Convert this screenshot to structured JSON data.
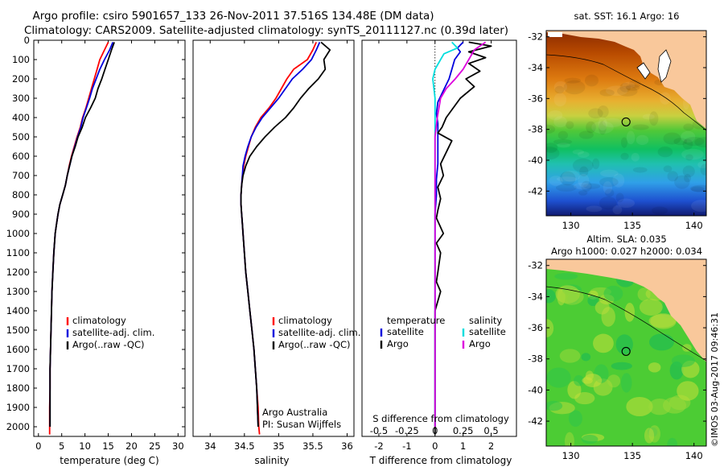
{
  "header": {
    "title_line1": "Argo profile: csiro 5901657_133 26-Nov-2011 37.516S 134.48E (DM data)",
    "title_line2": "Climatology: CARS2009. Satellite-adjusted climatology: synTS_20111127.nc (0.39d later)"
  },
  "colors": {
    "climatology": "#ff0000",
    "satellite": "#0000dd",
    "argo": "#000000",
    "sal_satellite": "#00dddd",
    "sal_argo": "#dd00dd",
    "land": "#f9c89b"
  },
  "chart_data": [
    {
      "id": "temperature",
      "type": "line",
      "xlabel": "temperature (deg C)",
      "ylabel": "",
      "xlim": [
        -1,
        31.5
      ],
      "ylim": [
        0,
        2050
      ],
      "y_reversed": true,
      "xticks": [
        0,
        5,
        10,
        15,
        20,
        25,
        30
      ],
      "yticks": [
        0,
        100,
        200,
        300,
        400,
        500,
        600,
        700,
        800,
        900,
        1000,
        1100,
        1200,
        1300,
        1400,
        1500,
        1600,
        1700,
        1800,
        1900,
        2000
      ],
      "legend": [
        "climatology",
        "satellite-adj. clim.",
        "Argo(..raw -QC)"
      ],
      "legend_position": "lower-left",
      "series": [
        {
          "name": "climatology",
          "color": "#ff0000",
          "x": [
            15.0,
            14.2,
            13.2,
            12.6,
            12.0,
            11.4,
            10.8,
            10.2,
            9.5,
            9.0,
            8.3,
            7.7,
            7.1,
            6.6,
            6.2,
            5.8,
            5.2,
            4.6,
            4.2,
            3.9,
            3.6,
            3.3,
            3.1,
            2.9,
            2.8,
            2.7,
            2.6,
            2.5,
            2.5,
            2.4,
            2.4,
            2.4
          ],
          "y": [
            10,
            50,
            100,
            150,
            200,
            250,
            300,
            350,
            400,
            450,
            500,
            550,
            600,
            650,
            700,
            750,
            800,
            850,
            900,
            950,
            1000,
            1100,
            1200,
            1300,
            1400,
            1500,
            1600,
            1700,
            1800,
            1900,
            2000,
            2040
          ]
        },
        {
          "name": "satellite-adj. clim.",
          "color": "#0000dd",
          "x": [
            16.0,
            15.3,
            14.2,
            13.2,
            12.4,
            11.6,
            11.0,
            10.3,
            9.6,
            9.1,
            8.4,
            7.8,
            7.2,
            6.7,
            6.2,
            5.8,
            5.2,
            4.6,
            4.2,
            3.9,
            3.6,
            3.3,
            3.1,
            2.9,
            2.8,
            2.7,
            2.6,
            2.5,
            2.5,
            2.5,
            2.5
          ],
          "y": [
            10,
            50,
            100,
            150,
            200,
            250,
            300,
            350,
            400,
            450,
            500,
            550,
            600,
            650,
            700,
            750,
            800,
            850,
            900,
            950,
            1000,
            1100,
            1200,
            1300,
            1400,
            1500,
            1600,
            1700,
            1800,
            1900,
            2000
          ]
        },
        {
          "name": "Argo(..raw -QC)",
          "color": "#000000",
          "x": [
            16.3,
            15.7,
            15.0,
            14.3,
            13.6,
            12.8,
            12.2,
            11.2,
            10.1,
            9.4,
            8.5,
            7.9,
            7.2,
            6.7,
            6.2,
            5.8,
            5.2,
            4.6,
            4.2,
            3.9,
            3.6,
            3.3,
            3.1,
            2.9,
            2.8,
            2.7,
            2.6,
            2.5,
            2.5,
            2.5,
            2.5
          ],
          "y": [
            10,
            50,
            100,
            150,
            200,
            250,
            300,
            350,
            400,
            450,
            500,
            550,
            600,
            650,
            700,
            750,
            800,
            850,
            900,
            950,
            1000,
            1100,
            1200,
            1300,
            1400,
            1500,
            1600,
            1700,
            1800,
            1900,
            2000
          ]
        }
      ]
    },
    {
      "id": "salinity",
      "type": "line",
      "xlabel": "salinity",
      "ylabel": "",
      "xlim": [
        33.75,
        36.1
      ],
      "ylim": [
        0,
        2050
      ],
      "y_reversed": true,
      "xticks": [
        34,
        34.5,
        35,
        35.5,
        36
      ],
      "xtick_labels": [
        "34",
        "34.5",
        "35",
        "35.5",
        "36"
      ],
      "legend": [
        "climatology",
        "satellite-adj. clim.",
        "Argo(..raw -QC)"
      ],
      "legend_position": "lower-right",
      "annotation": [
        "Argo Australia",
        "PI: Susan Wijffels"
      ],
      "series": [
        {
          "name": "climatology",
          "color": "#ff0000",
          "x": [
            35.55,
            35.5,
            35.42,
            35.22,
            35.12,
            35.04,
            34.96,
            34.86,
            34.74,
            34.66,
            34.6,
            34.56,
            34.52,
            34.49,
            34.47,
            34.46,
            34.45,
            34.45,
            34.46,
            34.47,
            34.48,
            34.5,
            34.52,
            34.55,
            34.58,
            34.61,
            34.64,
            34.66,
            34.68,
            34.7,
            34.71,
            34.72
          ],
          "y": [
            10,
            50,
            100,
            150,
            200,
            250,
            300,
            350,
            400,
            450,
            500,
            550,
            600,
            650,
            700,
            750,
            800,
            850,
            900,
            950,
            1000,
            1100,
            1200,
            1300,
            1400,
            1500,
            1600,
            1700,
            1800,
            1900,
            2000,
            2040
          ]
        },
        {
          "name": "satellite-adj. clim.",
          "color": "#0000dd",
          "x": [
            35.6,
            35.55,
            35.48,
            35.35,
            35.2,
            35.1,
            35.0,
            34.88,
            34.76,
            34.67,
            34.6,
            34.55,
            34.51,
            34.48,
            34.47,
            34.46,
            34.45,
            34.45,
            34.46,
            34.47,
            34.48,
            34.5,
            34.52,
            34.55,
            34.58,
            34.61,
            34.64,
            34.66,
            34.68,
            34.69,
            34.7
          ],
          "y": [
            10,
            50,
            100,
            150,
            200,
            250,
            300,
            350,
            400,
            450,
            500,
            550,
            600,
            650,
            700,
            750,
            800,
            850,
            900,
            950,
            1000,
            1100,
            1200,
            1300,
            1400,
            1500,
            1600,
            1700,
            1800,
            1900,
            2000
          ]
        },
        {
          "name": "Argo(..raw -QC)",
          "color": "#000000",
          "x": [
            35.62,
            35.75,
            35.66,
            35.68,
            35.58,
            35.44,
            35.32,
            35.22,
            35.1,
            34.94,
            34.8,
            34.68,
            34.58,
            34.52,
            34.48,
            34.46,
            34.45,
            34.45,
            34.46,
            34.47,
            34.48,
            34.5,
            34.52,
            34.55,
            34.58,
            34.61,
            34.64,
            34.66,
            34.68,
            34.69,
            34.7
          ],
          "y": [
            10,
            50,
            100,
            150,
            200,
            250,
            300,
            350,
            400,
            450,
            500,
            550,
            600,
            650,
            700,
            750,
            800,
            850,
            900,
            950,
            1000,
            1100,
            1200,
            1300,
            1400,
            1500,
            1600,
            1700,
            1800,
            1900,
            2000
          ]
        }
      ]
    },
    {
      "id": "difference",
      "type": "line",
      "xlabel": "T difference from climatology",
      "xlabel_top": "S difference from climatology",
      "xlim": [
        -2.6,
        2.9
      ],
      "ylim": [
        0,
        2050
      ],
      "y_reversed": true,
      "xticks": [
        -2,
        -1,
        0,
        1,
        2
      ],
      "s_ticks": [
        -0.5,
        -0.25,
        0,
        0.25,
        0.5
      ],
      "s_tick_labels": [
        "-0.5",
        "-0.25",
        "0",
        "0.25",
        "0.5"
      ],
      "legend_temperature_title": "temperature",
      "legend_salinity_title": "salinity",
      "legend_temperature": [
        "satellite",
        "Argo"
      ],
      "legend_salinity": [
        "satellite",
        "Argo"
      ],
      "series": [
        {
          "name": "satellite",
          "group": "temperature",
          "color": "#0000dd",
          "x": [
            1.0,
            0.8,
            0.9,
            0.7,
            0.6,
            0.5,
            0.3,
            0.1,
            0.05,
            0.1,
            0.1,
            0.1,
            0.1,
            0.05,
            0.05,
            0.0,
            0.0,
            0.0,
            0.0,
            0.0,
            0.0,
            0.0,
            0.0,
            0.0
          ],
          "y": [
            10,
            40,
            60,
            100,
            150,
            200,
            260,
            320,
            380,
            430,
            500,
            560,
            640,
            720,
            800,
            900,
            1000,
            1200,
            1400,
            1500,
            1600,
            1800,
            1900,
            2000
          ]
        },
        {
          "name": "Argo",
          "group": "temperature",
          "color": "#000000",
          "x": [
            1.2,
            2.0,
            1.2,
            1.8,
            1.2,
            1.6,
            1.1,
            1.4,
            0.9,
            0.6,
            0.4,
            0.25,
            0.1,
            0.6,
            0.4,
            0.2,
            0.3,
            0.1,
            0.2,
            0.1,
            0.05,
            0.3,
            0.05,
            0.2,
            0.1,
            0.05,
            0.2,
            0.0,
            0.0,
            0.0,
            0.0,
            0.0,
            0.0,
            0.0,
            0.0
          ],
          "y": [
            10,
            30,
            60,
            90,
            120,
            160,
            200,
            240,
            300,
            360,
            400,
            450,
            480,
            520,
            580,
            640,
            700,
            760,
            820,
            880,
            920,
            1000,
            1050,
            1100,
            1200,
            1250,
            1300,
            1400,
            1500,
            1600,
            1700,
            1800,
            1900,
            2000,
            2040
          ]
        },
        {
          "name": "satellite",
          "group": "salinity",
          "color": "#00dddd",
          "x": [
            0.15,
            0.2,
            0.08,
            0.05,
            0.0,
            -0.02,
            0.0,
            0.0,
            0.0,
            0.0,
            0.0,
            0.0,
            0.0,
            0.0,
            0.0,
            0.0,
            0.0,
            0.0
          ],
          "y": [
            10,
            40,
            70,
            100,
            150,
            200,
            300,
            400,
            500,
            600,
            700,
            800,
            1000,
            1200,
            1400,
            1600,
            1800,
            2000
          ]
        },
        {
          "name": "Argo",
          "group": "salinity",
          "color": "#dd00dd",
          "x": [
            0.45,
            0.35,
            0.3,
            0.25,
            0.18,
            0.1,
            0.05,
            0.02,
            0.0,
            0.0,
            0.0,
            0.0,
            0.0,
            0.0,
            0.0,
            0.0,
            0.0
          ],
          "y": [
            10,
            50,
            100,
            150,
            200,
            250,
            300,
            400,
            500,
            600,
            800,
            1000,
            1200,
            1400,
            1600,
            1800,
            2000
          ]
        }
      ]
    },
    {
      "id": "sst-map",
      "type": "heatmap",
      "title": "sat. SST: 16.1 Argo: 16",
      "xticks": [
        130,
        135,
        140
      ],
      "yticks": [
        -32,
        -34,
        -36,
        -38,
        -40,
        -42
      ],
      "xlim": [
        128,
        141
      ],
      "ylim": [
        -43.6,
        -31.6
      ],
      "marker": {
        "lon": 134.48,
        "lat": -37.516
      }
    },
    {
      "id": "sla-map",
      "type": "heatmap",
      "title_line1": "Altim. SLA: 0.035",
      "title_line2": "Argo h1000: 0.027 h2000: 0.034",
      "xticks": [
        130,
        135,
        140
      ],
      "yticks": [
        -32,
        -34,
        -36,
        -38,
        -40,
        -42
      ],
      "xlim": [
        128,
        141
      ],
      "ylim": [
        -43.6,
        -31.6
      ],
      "marker": {
        "lon": 134.48,
        "lat": -37.516
      }
    }
  ],
  "credit": "©IMOS 03-Aug-2017 09:46:31"
}
